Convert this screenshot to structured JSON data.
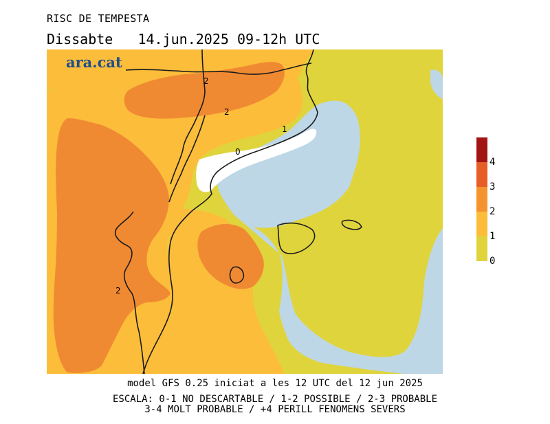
{
  "header": {
    "title": "RISC DE TEMPESTA",
    "subtitle": "Dissabte   14.jun.2025 09-12h UTC"
  },
  "logo": {
    "text": "ara.cat"
  },
  "footer": {
    "model_line": "model GFS 0.25 iniciat a les 12 UTC del 12 jun 2025",
    "scale_line_1": "ESCALA: 0-1 NO DESCARTABLE / 1-2 POSSIBLE / 2-3 PROBABLE",
    "scale_line_2": "3-4 MOLT PROBABLE / +4 PERILL FENOMENS SEVERS"
  },
  "contour_labels": {
    "north_2": "2",
    "north_2b": "2",
    "coast_1": "1",
    "coast_0": "0",
    "south_2": "2"
  },
  "legend": {
    "ticks": [
      "0",
      "1",
      "2",
      "3",
      "4"
    ],
    "colors": [
      "#e0d43c",
      "#fbbd3a",
      "#f5942f",
      "#e65e25",
      "#a31515"
    ]
  },
  "palette": {
    "sea": "#bdd7e7",
    "risk_0_1": "#e0d43c",
    "risk_1_2": "#fbbd3a",
    "risk_2_3": "#f08a32",
    "risk_3_4": "#e05f25",
    "risk_below_0": "#ffffff"
  }
}
